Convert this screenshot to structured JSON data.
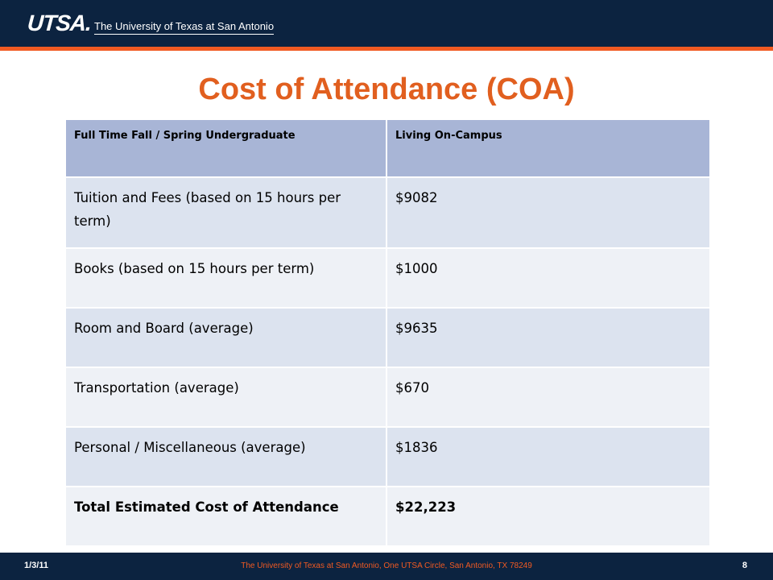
{
  "header": {
    "logo_mark": "UTSA.",
    "logo_text": "The University of Texas at San Antonio"
  },
  "slide": {
    "title": "Cost of Attendance (COA)"
  },
  "table": {
    "headers": [
      "Full Time Fall / Spring Undergraduate",
      "Living On-Campus"
    ],
    "rows": [
      {
        "item": "Tuition and Fees (based on 15 hours per term)",
        "amount": "$9082"
      },
      {
        "item": "Books (based on 15 hours per term)",
        "amount": "$1000"
      },
      {
        "item": "Room and Board (average)",
        "amount": "$9635"
      },
      {
        "item": "Transportation (average)",
        "amount": "$670"
      },
      {
        "item": "Personal / Miscellaneous (average)",
        "amount": "$1836"
      },
      {
        "item": "Total Estimated Cost of Attendance",
        "amount": "$22,223"
      }
    ]
  },
  "footer": {
    "date": "1/3/11",
    "address": "The University of Texas at San Antonio, One UTSA Circle, San Antonio, TX 78249",
    "page_number": "8"
  },
  "colors": {
    "navy": "#0c2340",
    "orange": "#f15a22",
    "title_orange": "#e15f1f",
    "header_blue": "#a8b5d6"
  }
}
